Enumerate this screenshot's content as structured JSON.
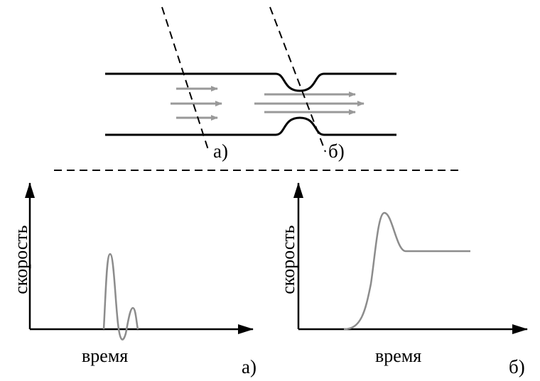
{
  "diagram": {
    "top": {
      "section_a_label": "а)",
      "section_b_label": "б)"
    },
    "plot_a": {
      "ylabel": "скорость",
      "xlabel": "время",
      "panel_label": "а)"
    },
    "plot_b": {
      "ylabel": "скорость",
      "xlabel": "время",
      "panel_label": "б)"
    },
    "colors": {
      "line": "#000000",
      "flow_arrow": "#999999",
      "curve": "#8c8c8c"
    }
  }
}
